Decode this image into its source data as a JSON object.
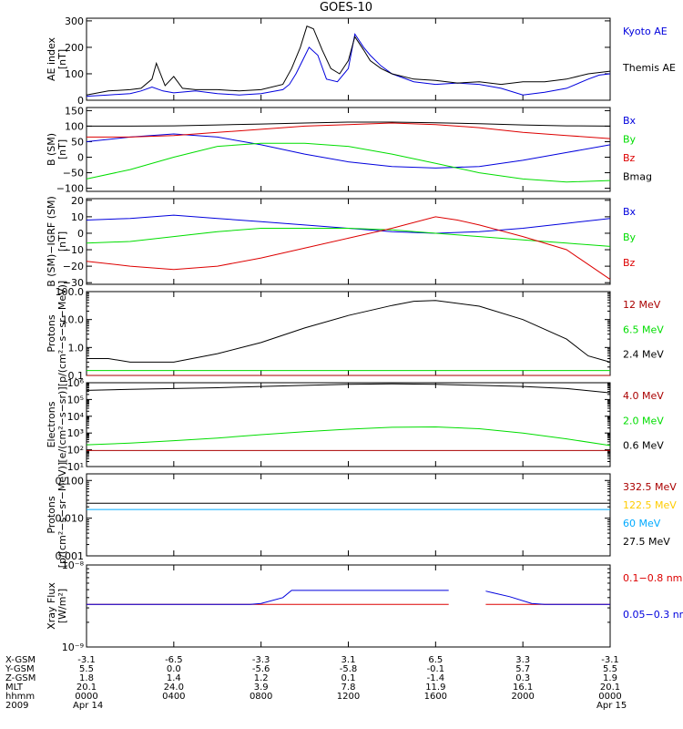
{
  "title": "GOES-10",
  "colors": {
    "black": "#000000",
    "blue": "#0000dd",
    "green": "#00dd00",
    "red": "#dd0000",
    "darkred": "#aa0000",
    "cyan": "#00aaff",
    "yellow": "#ffcc00"
  },
  "time_axis": {
    "start_hour": 0,
    "end_hour": 24,
    "major_ticks_hours": [
      0,
      4,
      8,
      12,
      16,
      20,
      24
    ]
  },
  "orbit_table": {
    "row_labels": [
      "X-GSM",
      "Y-GSM",
      "Z-GSM",
      "MLT",
      "hhmm",
      "2009"
    ],
    "columns": [
      [
        "-3.1",
        "5.5",
        "1.8",
        "20.1",
        "0000",
        "Apr 14"
      ],
      [
        "-6.5",
        "0.0",
        "1.4",
        "24.0",
        "0400",
        ""
      ],
      [
        "-3.3",
        "-5.6",
        "1.2",
        "3.9",
        "0800",
        ""
      ],
      [
        "3.1",
        "-5.8",
        "0.1",
        "7.8",
        "1200",
        ""
      ],
      [
        "6.5",
        "-0.1",
        "-1.4",
        "11.9",
        "1600",
        ""
      ],
      [
        "3.3",
        "5.7",
        "0.3",
        "16.1",
        "2000",
        ""
      ],
      [
        "-3.1",
        "5.5",
        "1.9",
        "20.1",
        "0000",
        "Apr 15"
      ]
    ]
  },
  "chart_data": [
    {
      "type": "line",
      "panel": "ae",
      "ylabel": "AE index\n[nT]",
      "ylim": [
        0,
        310
      ],
      "yscale": "linear",
      "yticks": [
        {
          "v": 0,
          "label": "0"
        },
        {
          "v": 100,
          "label": "100"
        },
        {
          "v": 200,
          "label": "200"
        },
        {
          "v": 300,
          "label": "300"
        }
      ],
      "series": [
        {
          "name": "Kyoto AE",
          "color": "#0000dd",
          "x": [
            0,
            1,
            2,
            2.5,
            3,
            3.5,
            4,
            5,
            6,
            7,
            8,
            9,
            9.3,
            9.6,
            9.9,
            10.2,
            10.6,
            11,
            11.5,
            12,
            12.3,
            12.7,
            13,
            13.5,
            14,
            15,
            16,
            17,
            18,
            19,
            20,
            21,
            22,
            23,
            23.5,
            24
          ],
          "y": [
            15,
            20,
            25,
            35,
            50,
            35,
            28,
            35,
            25,
            20,
            25,
            40,
            60,
            100,
            150,
            200,
            170,
            80,
            70,
            120,
            250,
            200,
            170,
            130,
            100,
            70,
            60,
            65,
            60,
            45,
            20,
            30,
            45,
            80,
            95,
            100
          ]
        },
        {
          "name": "Themis AE",
          "color": "#000000",
          "x": [
            0,
            1,
            2,
            2.5,
            3,
            3.2,
            3.6,
            4,
            4.4,
            5,
            6,
            7,
            8,
            9,
            9.4,
            9.8,
            10.1,
            10.4,
            10.8,
            11.2,
            11.6,
            12,
            12.3,
            12.7,
            13,
            13.5,
            14,
            15,
            16,
            17,
            18,
            19,
            20,
            21,
            22,
            23,
            24
          ],
          "y": [
            20,
            35,
            40,
            45,
            80,
            140,
            55,
            90,
            45,
            40,
            40,
            35,
            40,
            60,
            120,
            200,
            280,
            270,
            190,
            120,
            100,
            150,
            240,
            190,
            150,
            120,
            100,
            80,
            75,
            65,
            70,
            60,
            70,
            70,
            80,
            100,
            110
          ]
        }
      ]
    },
    {
      "type": "line",
      "panel": "b_sm",
      "ylabel": "B (SM)\n[nT]",
      "ylim": [
        -110,
        160
      ],
      "yscale": "linear",
      "yticks": [
        {
          "v": -100,
          "label": "−100"
        },
        {
          "v": -50,
          "label": "−50"
        },
        {
          "v": 0,
          "label": "0"
        },
        {
          "v": 50,
          "label": "50"
        },
        {
          "v": 100,
          "label": "100"
        },
        {
          "v": 150,
          "label": "150"
        }
      ],
      "series": [
        {
          "name": "Bx",
          "color": "#0000dd",
          "x": [
            0,
            2,
            4,
            6,
            8,
            10,
            12,
            14,
            16,
            18,
            20,
            22,
            24
          ],
          "y": [
            50,
            65,
            75,
            65,
            40,
            10,
            -15,
            -30,
            -35,
            -30,
            -10,
            15,
            40
          ]
        },
        {
          "name": "By",
          "color": "#00dd00",
          "x": [
            0,
            2,
            4,
            6,
            8,
            10,
            12,
            14,
            16,
            18,
            20,
            22,
            24
          ],
          "y": [
            -70,
            -40,
            0,
            35,
            45,
            45,
            35,
            10,
            -20,
            -50,
            -70,
            -80,
            -75
          ]
        },
        {
          "name": "Bz",
          "color": "#dd0000",
          "x": [
            0,
            2,
            4,
            6,
            8,
            10,
            12,
            14,
            16,
            18,
            20,
            22,
            24
          ],
          "y": [
            65,
            65,
            70,
            80,
            90,
            100,
            105,
            110,
            105,
            95,
            80,
            70,
            60
          ]
        },
        {
          "name": "Bmag",
          "color": "#000000",
          "x": [
            0,
            2,
            4,
            6,
            8,
            10,
            12,
            14,
            16,
            18,
            20,
            22,
            24
          ],
          "y": [
            100,
            100,
            101,
            104,
            107,
            110,
            113,
            113,
            111,
            108,
            104,
            101,
            100
          ]
        }
      ]
    },
    {
      "type": "line",
      "panel": "b_minus_igrf",
      "ylabel": "B (SM)−IGRF (SM)\n[nT]",
      "ylim": [
        -31,
        21
      ],
      "yscale": "linear",
      "yticks": [
        {
          "v": -30,
          "label": "−30"
        },
        {
          "v": -20,
          "label": "−20"
        },
        {
          "v": -10,
          "label": "−10"
        },
        {
          "v": 0,
          "label": "0"
        },
        {
          "v": 10,
          "label": "10"
        },
        {
          "v": 20,
          "label": "20"
        }
      ],
      "series": [
        {
          "name": "Bx",
          "color": "#0000dd",
          "x": [
            0,
            2,
            4,
            6,
            8,
            10,
            12,
            14,
            16,
            18,
            20,
            22,
            24
          ],
          "y": [
            8,
            9,
            11,
            9,
            7,
            5,
            3,
            1,
            0,
            1,
            3,
            6,
            9
          ]
        },
        {
          "name": "By",
          "color": "#00dd00",
          "x": [
            0,
            2,
            4,
            6,
            8,
            10,
            12,
            14,
            16,
            18,
            20,
            22,
            24
          ],
          "y": [
            -6,
            -5,
            -2,
            1,
            3,
            3,
            3,
            2,
            0,
            -2,
            -4,
            -6,
            -8
          ]
        },
        {
          "name": "Bz",
          "color": "#dd0000",
          "x": [
            0,
            2,
            4,
            6,
            8,
            10,
            12,
            14,
            16,
            17,
            18,
            20,
            22,
            24
          ],
          "y": [
            -17,
            -20,
            -22,
            -20,
            -15,
            -9,
            -3,
            3,
            10,
            8,
            5,
            -2,
            -10,
            -28
          ]
        }
      ]
    },
    {
      "type": "line",
      "panel": "protons_low",
      "ylabel": "Protons\n[p/(cm²−s−sr−MeV)]",
      "ylim": [
        0.1,
        100
      ],
      "yscale": "log",
      "yticks": [
        {
          "v": 0.1,
          "label": "0.1"
        },
        {
          "v": 1,
          "label": "1.0"
        },
        {
          "v": 10,
          "label": "10.0"
        },
        {
          "v": 100,
          "label": "100.0"
        }
      ],
      "series": [
        {
          "name": "12 MeV",
          "color": "#aa0000",
          "x": [
            0,
            24
          ],
          "y": [
            0.1,
            0.1
          ]
        },
        {
          "name": "6.5 MeV",
          "color": "#00dd00",
          "x": [
            0,
            24
          ],
          "y": [
            0.15,
            0.15
          ]
        },
        {
          "name": "2.4 MeV",
          "color": "#000000",
          "x": [
            0,
            1,
            2,
            4,
            6,
            8,
            10,
            12,
            14,
            15,
            16,
            18,
            20,
            22,
            23,
            24
          ],
          "y": [
            0.4,
            0.4,
            0.3,
            0.3,
            0.6,
            1.5,
            5,
            14,
            32,
            45,
            48,
            30,
            10,
            2,
            0.5,
            0.3
          ]
        }
      ]
    },
    {
      "type": "line",
      "panel": "electrons",
      "ylabel": "Electrons\n[e/(cm²−s−sr)]",
      "ylim": [
        10,
        1000000
      ],
      "yscale": "log",
      "yticks": [
        {
          "v": 10,
          "label": "10¹"
        },
        {
          "v": 100,
          "label": "10²"
        },
        {
          "v": 1000,
          "label": "10³"
        },
        {
          "v": 10000,
          "label": "10⁴"
        },
        {
          "v": 100000,
          "label": "10⁵"
        },
        {
          "v": 1000000,
          "label": "10⁶"
        }
      ],
      "series": [
        {
          "name": "4.0 MeV",
          "color": "#aa0000",
          "x": [
            0,
            24
          ],
          "y": [
            90,
            90
          ]
        },
        {
          "name": "2.0 MeV",
          "color": "#00dd00",
          "x": [
            0,
            2,
            4,
            6,
            8,
            10,
            12,
            14,
            16,
            18,
            20,
            22,
            24
          ],
          "y": [
            200,
            250,
            350,
            500,
            800,
            1200,
            1700,
            2200,
            2300,
            1800,
            1000,
            450,
            180
          ]
        },
        {
          "name": "0.6 MeV",
          "color": "#000000",
          "x": [
            0,
            2,
            4,
            6,
            8,
            10,
            12,
            14,
            16,
            18,
            20,
            22,
            24
          ],
          "y": [
            350000,
            400000,
            450000,
            500000,
            600000,
            700000,
            800000,
            850000,
            800000,
            700000,
            600000,
            450000,
            250000
          ]
        }
      ]
    },
    {
      "type": "line",
      "panel": "protons_high",
      "ylabel": "Protons\n[p/(cm²−s−sr−MeV)]",
      "ylim": [
        0.001,
        0.15
      ],
      "yscale": "log",
      "yticks": [
        {
          "v": 0.001,
          "label": "0.001"
        },
        {
          "v": 0.01,
          "label": "0.010"
        },
        {
          "v": 0.1,
          "label": "0.100"
        }
      ],
      "series": [
        {
          "name": "332.5 MeV",
          "color": "#aa0000",
          "x": [],
          "y": []
        },
        {
          "name": "122.5 MeV",
          "color": "#ffcc00",
          "x": [],
          "y": []
        },
        {
          "name": "60 MeV",
          "color": "#00aaff",
          "x": [
            0,
            24
          ],
          "y": [
            0.017,
            0.017
          ]
        },
        {
          "name": "27.5 MeV",
          "color": "#000000",
          "x": [
            0,
            24
          ],
          "y": [
            0.025,
            0.025
          ]
        }
      ]
    },
    {
      "type": "line",
      "panel": "xray",
      "ylabel": "Xray Flux\n[W/m²]",
      "ylim": [
        1e-09,
        1e-08
      ],
      "yscale": "log",
      "yticks": [
        {
          "v": 1e-09,
          "label": "10⁻⁹"
        },
        {
          "v": 1e-08,
          "label": "10⁻⁸"
        }
      ],
      "series": [
        {
          "name": "0.1−0.8 nm",
          "color": "#dd0000",
          "x": [
            0,
            16.6,
            null,
            18.3,
            24
          ],
          "y": [
            3.3e-09,
            3.3e-09,
            null,
            3.3e-09,
            3.3e-09
          ]
        },
        {
          "name": "0.05−0.3 nm",
          "color": "#0000dd",
          "x": [
            0,
            7.5,
            8,
            9,
            9.4,
            16.6,
            null,
            18.3,
            18.6,
            19.4,
            20.4,
            21,
            24
          ],
          "y": [
            3.3e-09,
            3.3e-09,
            3.4e-09,
            4e-09,
            4.9e-09,
            4.9e-09,
            null,
            4.8e-09,
            4.6e-09,
            4.1e-09,
            3.4e-09,
            3.3e-09,
            3.3e-09
          ]
        }
      ]
    }
  ]
}
